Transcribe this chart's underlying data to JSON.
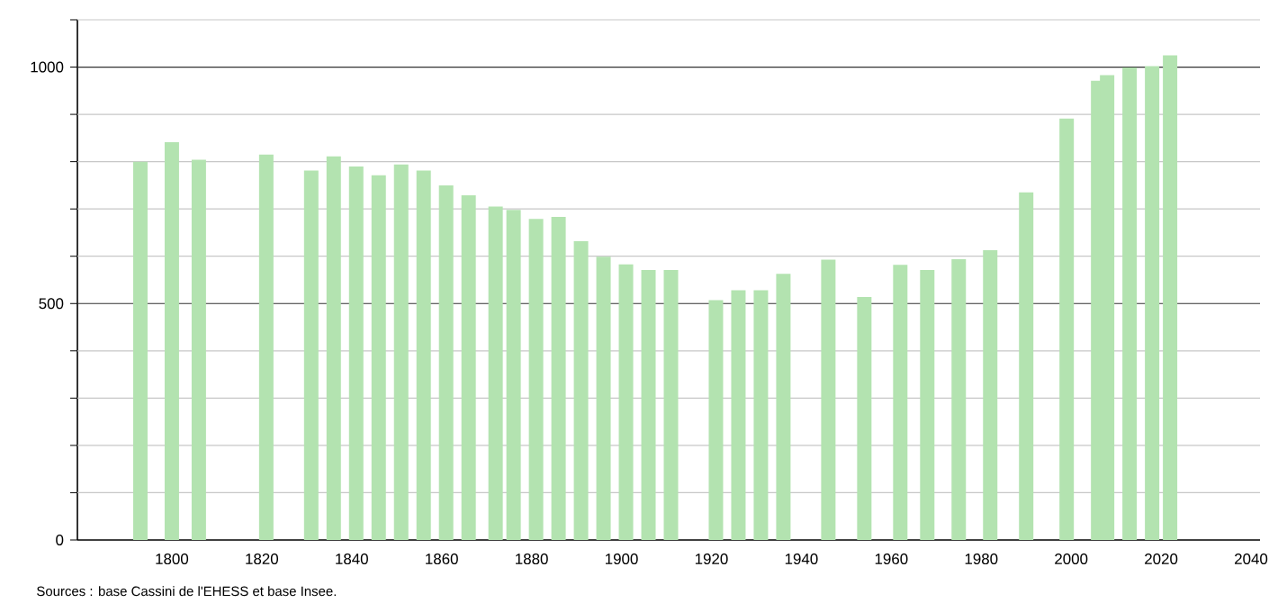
{
  "chart_data": {
    "type": "bar",
    "x": [
      1793,
      1800,
      1806,
      1821,
      1831,
      1836,
      1841,
      1846,
      1851,
      1856,
      1861,
      1866,
      1872,
      1876,
      1881,
      1886,
      1891,
      1896,
      1901,
      1906,
      1911,
      1921,
      1926,
      1931,
      1936,
      1946,
      1954,
      1962,
      1968,
      1975,
      1982,
      1990,
      1999,
      2006,
      2008,
      2013,
      2018,
      2022
    ],
    "values": [
      800,
      841,
      804,
      815,
      781,
      811,
      790,
      771,
      794,
      781,
      750,
      729,
      705,
      698,
      679,
      683,
      632,
      599,
      583,
      571,
      571,
      507,
      528,
      528,
      563,
      593,
      514,
      582,
      571,
      594,
      613,
      735,
      891,
      971,
      983,
      999,
      1002,
      1025
    ],
    "color": "#b3e3b0",
    "xlim": [
      1779,
      2042
    ],
    "xticks": [
      1800,
      1820,
      1840,
      1860,
      1880,
      1900,
      1920,
      1940,
      1960,
      1980,
      2000,
      2020,
      2040
    ],
    "ylim": [
      0,
      1100
    ],
    "yticks": [
      0,
      {
        "value": 100,
        "label": null
      },
      {
        "value": 200,
        "label": null
      },
      {
        "value": 300,
        "label": null
      },
      {
        "value": 400,
        "label": null
      },
      500,
      {
        "value": 600,
        "label": null
      },
      {
        "value": 700,
        "label": null
      },
      {
        "value": 800,
        "label": null
      },
      {
        "value": 900,
        "label": null
      },
      1000,
      {
        "value": 1100,
        "label": null
      }
    ],
    "grid": "y",
    "annotations": [
      "Sources : base Cassini de l'EHESS et base Insee."
    ]
  }
}
